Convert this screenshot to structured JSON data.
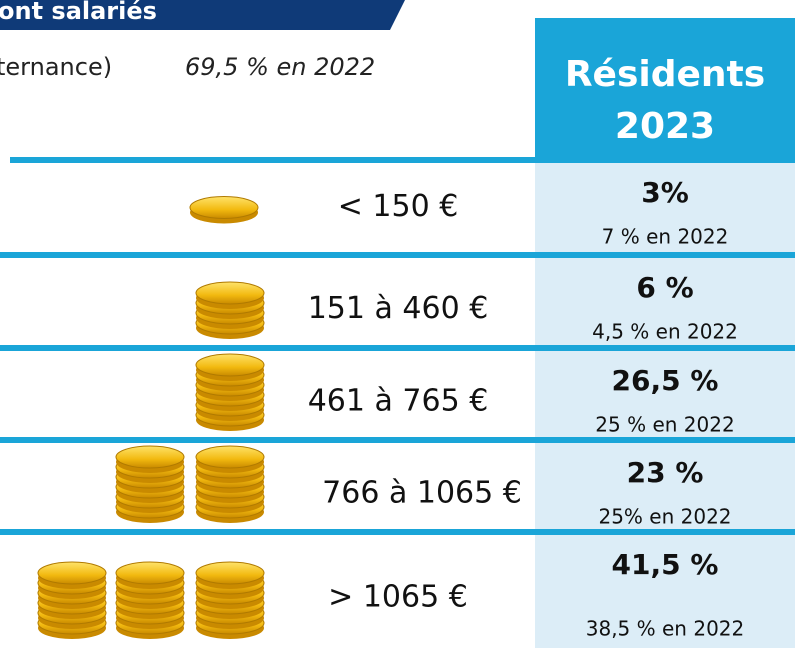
{
  "header": {
    "banner": "ont salariés",
    "note_left": "ternance)",
    "note_right": "69,5 % en 2022",
    "column_title": "Résidents",
    "column_year": "2023"
  },
  "table": {
    "rows": [
      {
        "range": "< 150 €",
        "value": "3%",
        "previous": "7 % en 2022"
      },
      {
        "range": "151 à 460 €",
        "value": "6 %",
        "previous": "4,5 % en 2022"
      },
      {
        "range": "461 à 765 €",
        "value": "26,5 %",
        "previous": "25 % en 2022"
      },
      {
        "range": "766 à 1065 €",
        "value": "23 %",
        "previous": "25% en 2022"
      },
      {
        "range": "> 1065 €",
        "value": "41,5 %",
        "previous": "38,5 % en 2022"
      }
    ]
  }
}
